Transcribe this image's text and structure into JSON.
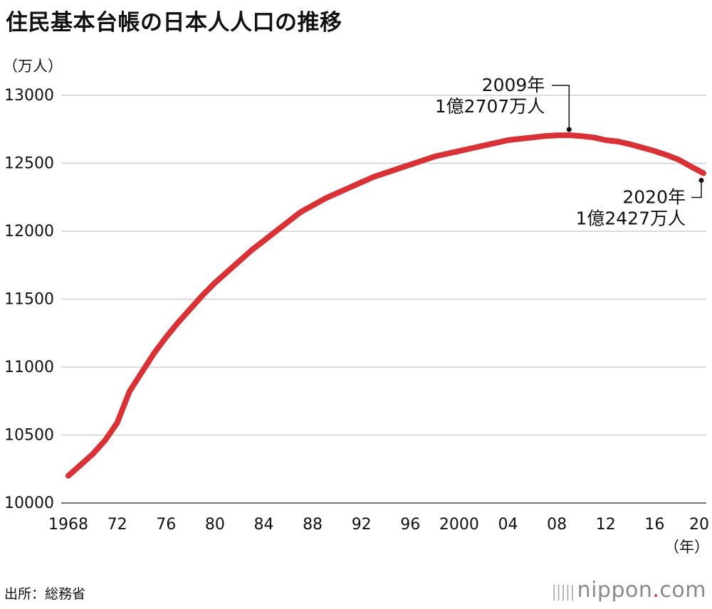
{
  "title": "住民基本台帳の日本人人口の推移",
  "source": "出所：総務省",
  "brand": {
    "bars_glyph": "|||||",
    "name_part1": "nippon",
    "dot": ".",
    "name_part2": "com"
  },
  "colors": {
    "line": "#d93236",
    "grid": "#c8c8c8",
    "text": "#111111",
    "brand_dot": "#d62f30"
  },
  "chart_data": {
    "type": "line",
    "title": "住民基本台帳の日本人人口の推移",
    "ylabel": "（万人）",
    "xlabel": "（年）",
    "ylim": [
      10000,
      13000
    ],
    "xlim": [
      1968,
      2020
    ],
    "yticks": [
      13000,
      12500,
      12000,
      11500,
      11000,
      10500,
      10000
    ],
    "xticks": [
      {
        "value": 1968,
        "label": "1968"
      },
      {
        "value": 1972,
        "label": "72"
      },
      {
        "value": 1976,
        "label": "76"
      },
      {
        "value": 1980,
        "label": "80"
      },
      {
        "value": 1984,
        "label": "84"
      },
      {
        "value": 1988,
        "label": "88"
      },
      {
        "value": 1992,
        "label": "92"
      },
      {
        "value": 1996,
        "label": "96"
      },
      {
        "value": 2000,
        "label": "2000"
      },
      {
        "value": 2004,
        "label": "04"
      },
      {
        "value": 2008,
        "label": "08"
      },
      {
        "value": 2012,
        "label": "12"
      },
      {
        "value": 2016,
        "label": "16"
      },
      {
        "value": 2020,
        "label": "20"
      }
    ],
    "grid": true,
    "series": [
      {
        "name": "日本人人口",
        "x": [
          1968,
          1969,
          1970,
          1971,
          1972,
          1973,
          1974,
          1975,
          1976,
          1977,
          1978,
          1979,
          1980,
          1981,
          1982,
          1983,
          1984,
          1985,
          1986,
          1987,
          1988,
          1989,
          1990,
          1991,
          1992,
          1993,
          1994,
          1995,
          1996,
          1997,
          1998,
          1999,
          2000,
          2001,
          2002,
          2003,
          2004,
          2005,
          2006,
          2007,
          2008,
          2009,
          2010,
          2011,
          2012,
          2013,
          2014,
          2015,
          2016,
          2017,
          2018,
          2019,
          2020
        ],
        "values": [
          10200,
          10280,
          10360,
          10460,
          10590,
          10820,
          10960,
          11100,
          11220,
          11330,
          11430,
          11530,
          11620,
          11700,
          11780,
          11860,
          11930,
          12000,
          12070,
          12140,
          12190,
          12240,
          12280,
          12320,
          12360,
          12400,
          12430,
          12460,
          12490,
          12520,
          12550,
          12570,
          12590,
          12610,
          12630,
          12650,
          12670,
          12680,
          12690,
          12700,
          12705,
          12707,
          12700,
          12690,
          12670,
          12660,
          12640,
          12615,
          12590,
          12560,
          12525,
          12475,
          12427
        ]
      }
    ],
    "annotations": [
      {
        "x": 2009,
        "y": 12707,
        "year_label": "2009年",
        "value_label": "1億2707万人"
      },
      {
        "x": 2020,
        "y": 12427,
        "year_label": "2020年",
        "value_label": "1億2427万人"
      }
    ]
  }
}
